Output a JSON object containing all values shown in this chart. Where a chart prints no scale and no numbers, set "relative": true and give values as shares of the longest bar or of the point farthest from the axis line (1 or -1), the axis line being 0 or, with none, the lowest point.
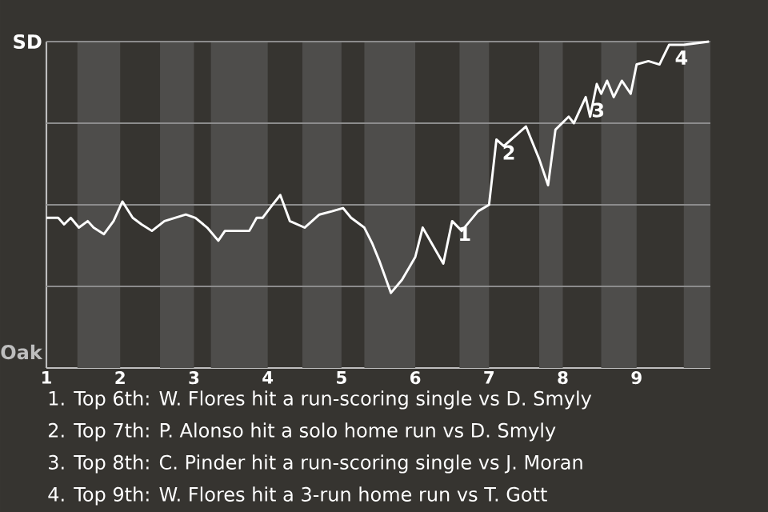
{
  "chart_data": {
    "type": "line",
    "relative": true,
    "marker": "none",
    "line_style": "solid",
    "xlim": [
      1,
      10
    ],
    "xticks": [
      1,
      2,
      3,
      4,
      5,
      6,
      7,
      8,
      9
    ],
    "x": [
      1,
      1.16,
      1.24,
      1.33,
      1.44,
      1.56,
      1.64,
      1.78,
      1.91,
      2.03,
      2.17,
      2.29,
      2.43,
      2.6,
      2.89,
      3.02,
      3.18,
      3.33,
      3.42,
      3.75,
      3.85,
      3.93,
      4.03,
      4.17,
      4.3,
      4.5,
      4.7,
      4.87,
      5.02,
      5.13,
      5.31,
      5.42,
      5.51,
      5.67,
      5.82,
      6,
      6.1,
      6.38,
      6.5,
      6.63,
      6.85,
      7,
      7.1,
      7.2,
      7.5,
      7.68,
      7.8,
      7.9,
      8.08,
      8.15,
      8.31,
      8.37,
      8.46,
      8.52,
      8.6,
      8.69,
      8.8,
      8.92,
      9,
      9.16,
      9.31,
      9.44,
      9.64,
      9.98
    ],
    "series": [
      {
        "color": "#ffffff",
        "values": [
          0.46,
          0.46,
          0.44,
          0.46,
          0.43,
          0.45,
          0.43,
          0.41,
          0.45,
          0.51,
          0.46,
          0.44,
          0.42,
          0.45,
          0.47,
          0.46,
          0.43,
          0.39,
          0.42,
          0.42,
          0.46,
          0.46,
          0.49,
          0.53,
          0.45,
          0.43,
          0.47,
          0.48,
          0.49,
          0.46,
          0.43,
          0.38,
          0.33,
          0.23,
          0.27,
          0.34,
          0.43,
          0.32,
          0.45,
          0.42,
          0.48,
          0.5,
          0.7,
          0.68,
          0.74,
          0.64,
          0.56,
          0.73,
          0.77,
          0.75,
          0.83,
          0.77,
          0.87,
          0.84,
          0.88,
          0.83,
          0.88,
          0.84,
          0.93,
          0.94,
          0.93,
          0.99,
          0.99,
          1.0
        ]
      }
    ],
    "bands": [
      {
        "axis": "x",
        "from": 1.42,
        "to": 2,
        "color": "#4e4d4b"
      },
      {
        "axis": "x",
        "from": 2.54,
        "to": 3,
        "color": "#4e4d4b"
      },
      {
        "axis": "x",
        "from": 3.23,
        "to": 4,
        "color": "#4e4d4b"
      },
      {
        "axis": "x",
        "from": 4.47,
        "to": 5,
        "color": "#4e4d4b"
      },
      {
        "axis": "x",
        "from": 5.31,
        "to": 6,
        "color": "#4e4d4b"
      },
      {
        "axis": "x",
        "from": 6.6,
        "to": 7,
        "color": "#4e4d4b"
      },
      {
        "axis": "x",
        "from": 7.68,
        "to": 8,
        "color": "#4e4d4b"
      },
      {
        "axis": "x",
        "from": 8.52,
        "to": 9,
        "color": "#4e4d4b"
      },
      {
        "axis": "x",
        "from": 9.64,
        "to": 10,
        "color": "#4e4d4b"
      }
    ],
    "ref_lines": [
      {
        "axis": "y",
        "value": 0.25,
        "color": "#8c8c8c"
      },
      {
        "axis": "y",
        "value": 0.5,
        "color": "#8c8c8c"
      },
      {
        "axis": "y",
        "value": 0.75,
        "color": "#8c8c8c"
      },
      {
        "axis": "y",
        "value": 1.0,
        "color": "#8c8c8c"
      }
    ],
    "annotations": [
      "SD",
      "Oak",
      {
        "text": "1",
        "x": 6.5,
        "y": 0.45
      },
      {
        "text": "2",
        "x": 7.1,
        "y": 0.7
      },
      {
        "text": "3",
        "x": 8.31,
        "y": 0.83
      },
      {
        "text": "4",
        "x": 9.44,
        "y": 0.99
      },
      "1. Top 6th: W. Flores hit a run-scoring single vs D. Smyly",
      "2. Top 7th: P. Alonso hit a solo home run vs D. Smyly",
      "3. Top 8th: C. Pinder hit a run-scoring single vs J. Moran",
      "4. Top 9th: W. Flores hit a 3-run home run vs T. Gott"
    ]
  }
}
